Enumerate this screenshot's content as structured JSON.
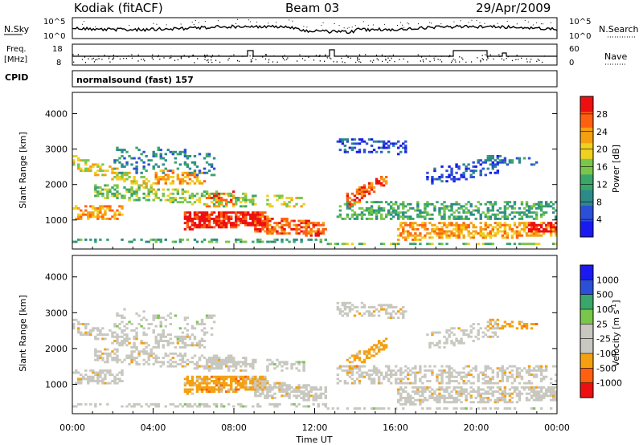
{
  "header": {
    "radar": "Kodiak (fitACF)",
    "beam": "Beam 03",
    "date": "29/Apr/2009"
  },
  "top_strips": {
    "nsky_label": "N.Sky",
    "nsearch_label": "N.Search",
    "nsky_ticks": [
      "10^5",
      "10^0"
    ],
    "nsearch_ticks": [
      "10^5",
      "10^0"
    ],
    "freq_label_1": "Freq.",
    "freq_label_2": "[MHz]",
    "freq_ticks": [
      "18",
      "8"
    ],
    "nave_label": "Nave",
    "nave_ticks": [
      "60",
      "0"
    ],
    "cpid_label": "CPID",
    "cpid_value": "normalsound (fast) 157"
  },
  "colors": {
    "power_scale": [
      "#1a1af0",
      "#2c4fd8",
      "#2e8a8a",
      "#3aa66a",
      "#7ac64a",
      "#f0d020",
      "#f5a010",
      "#ff6010",
      "#ee1010"
    ],
    "velocity_scale": [
      "#ee1010",
      "#ff6010",
      "#f5a010",
      "#c8c8c0",
      "#c8c8c0",
      "#7ac64a",
      "#3aa66a",
      "#2c4fd8",
      "#1a1af0"
    ]
  },
  "chart_data": [
    {
      "type": "heatmap",
      "name": "power",
      "xlabel": "",
      "ylabel": "Slant Range [km]",
      "x_range_ut_hours": [
        0,
        24
      ],
      "y_range_km": [
        180,
        4600
      ],
      "yticks": [
        "4000",
        "3000",
        "2000",
        "1000"
      ],
      "colorbar_label": "Power [dB]",
      "colorbar_ticks": [
        "28",
        "24",
        "20",
        "16",
        "12",
        "8",
        "4"
      ]
    },
    {
      "type": "heatmap",
      "name": "velocity",
      "xlabel": "Time UT",
      "ylabel": "Slant Range [km]",
      "x_range_ut_hours": [
        0,
        24
      ],
      "y_range_km": [
        180,
        4600
      ],
      "xticks": [
        "00:00",
        "04:00",
        "08:00",
        "12:00",
        "16:00",
        "20:00",
        "00:00"
      ],
      "yticks": [
        "4000",
        "3000",
        "2000",
        "1000"
      ],
      "colorbar_label": "Velocity [m s^-1]",
      "colorbar_ticks": [
        "1000",
        "500",
        "100",
        "25",
        "-25",
        "-100",
        "-500",
        "-1000"
      ]
    }
  ]
}
